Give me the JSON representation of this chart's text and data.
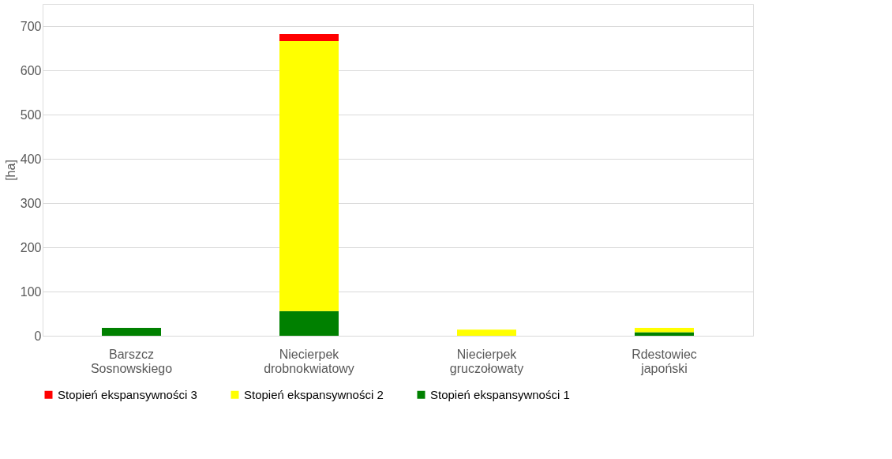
{
  "chart_data": {
    "type": "bar",
    "stacked": true,
    "ylabel": "[ha]",
    "categories": [
      "Barszcz Sosnowskiego",
      "Niecierpek drobnokwiatowy",
      "Niecierpek gruczołowaty",
      "Rdestowiec japoński"
    ],
    "series": [
      {
        "name": "Stopień ekspansywności 1",
        "color": "#008000",
        "values": [
          18,
          56,
          0,
          8
        ]
      },
      {
        "name": "Stopień ekspansywności 2",
        "color": "#ffff00",
        "values": [
          0,
          610,
          14,
          10
        ]
      },
      {
        "name": "Stopień ekspansywności 3",
        "color": "#ff0000",
        "values": [
          0,
          16,
          0,
          0
        ]
      }
    ],
    "ylim": [
      0,
      750
    ],
    "yticks": [
      0,
      100,
      200,
      300,
      400,
      500,
      600,
      700
    ],
    "grid": "y",
    "legend": "bottom"
  }
}
